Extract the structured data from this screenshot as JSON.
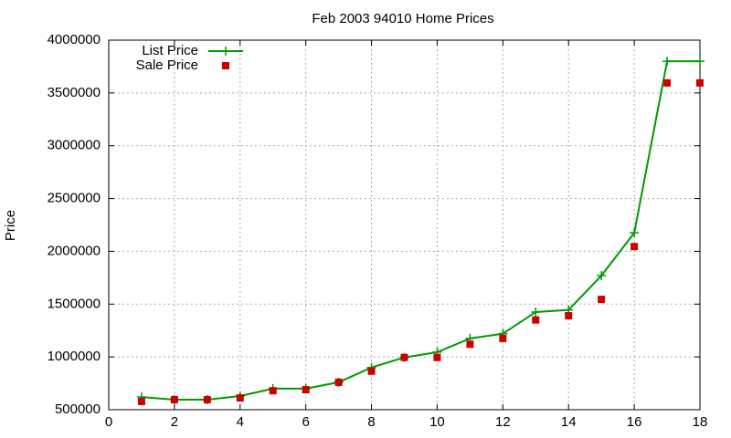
{
  "chart_data": {
    "type": "line",
    "title": "Feb 2003 94010 Home Prices",
    "ylabel": "Price",
    "x": [
      1,
      2,
      3,
      4,
      5,
      6,
      7,
      8,
      9,
      10,
      11,
      12,
      13,
      14,
      15,
      16,
      17,
      18
    ],
    "series": [
      {
        "name": "List Price",
        "color": "#009900",
        "style": "linespoints",
        "values": [
          620000,
          595000,
          595000,
          630000,
          700000,
          700000,
          760000,
          900000,
          995000,
          1045000,
          1175000,
          1220000,
          1425000,
          1445000,
          1770000,
          2175000,
          3800000,
          3800000
        ]
      },
      {
        "name": "Sale Price",
        "color": "#cc0000",
        "style": "points",
        "values": [
          578000,
          595000,
          595000,
          612000,
          680000,
          690000,
          760000,
          865000,
          995000,
          995000,
          1120000,
          1175000,
          1350000,
          1390000,
          1545000,
          2045000,
          3595000,
          3595000
        ]
      }
    ],
    "xlim": [
      0,
      18
    ],
    "xticks": [
      0,
      2,
      4,
      6,
      8,
      10,
      12,
      14,
      16,
      18
    ],
    "ylim": [
      500000,
      4000000
    ],
    "yticks": [
      500000,
      1000000,
      1500000,
      2000000,
      2500000,
      3000000,
      3500000,
      4000000
    ],
    "grid": true,
    "legend": "top-left"
  }
}
